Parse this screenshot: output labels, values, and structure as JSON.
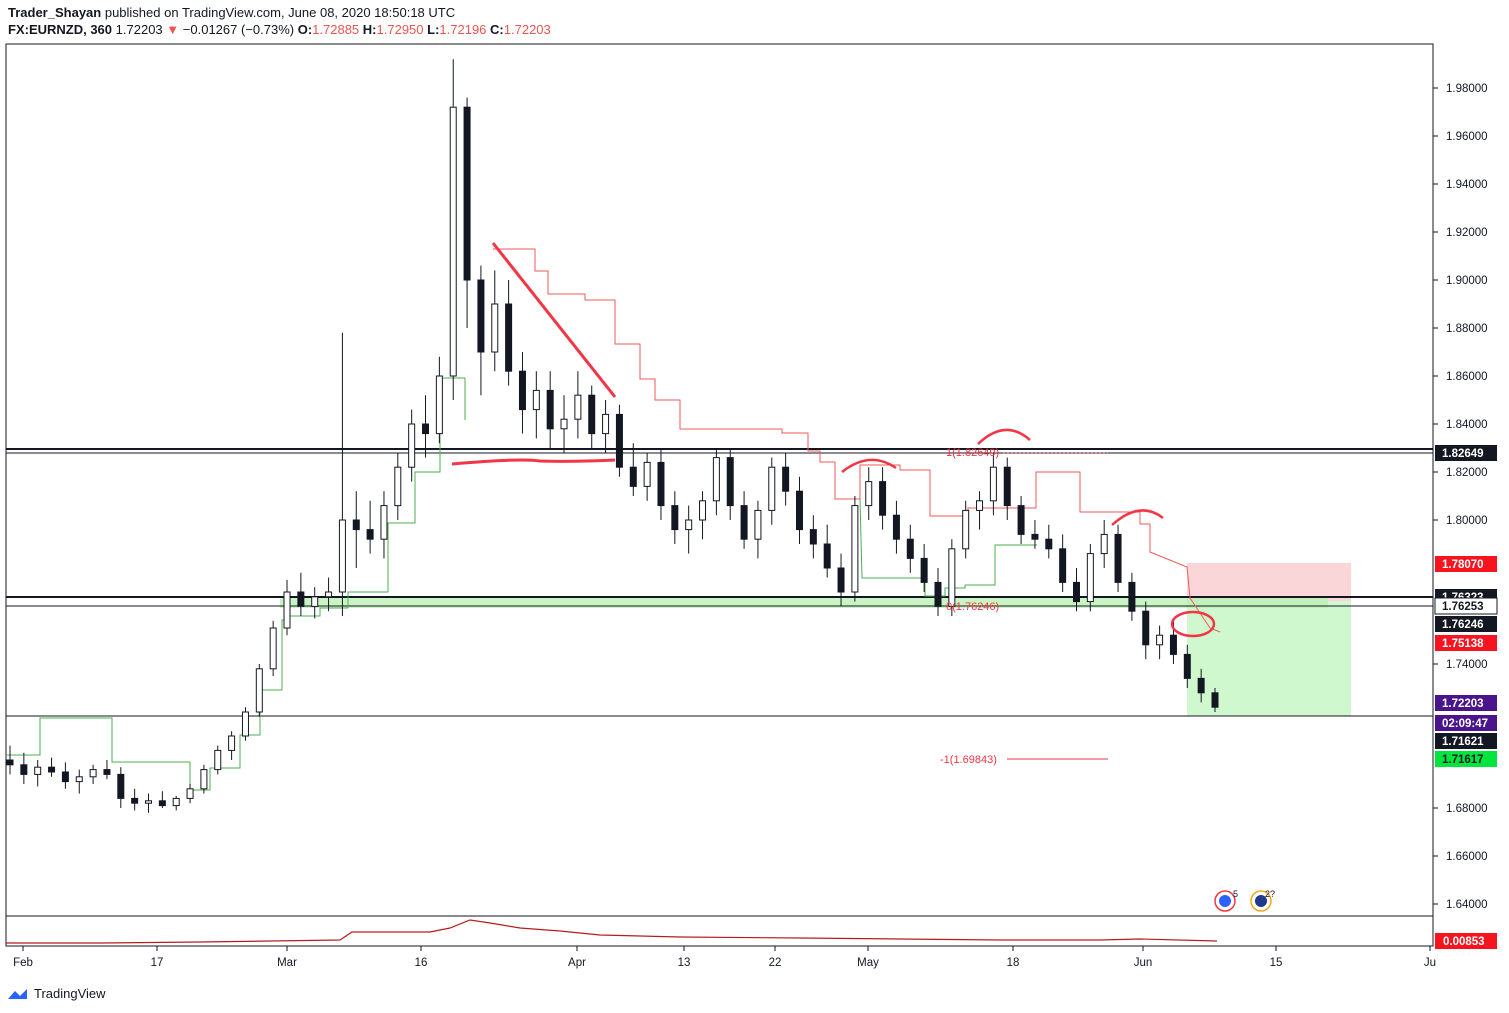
{
  "header": {
    "author": "Trader_Shayan",
    "published": "published on TradingView.com, June 08, 2020 18:50:18 UTC",
    "symbol": "FX:EURNZD, 360",
    "last": "1.72203",
    "change": "−0.01267 (−0.73%)",
    "o_label": "O:",
    "o": "1.72885",
    "h_label": "H:",
    "h": "1.72950",
    "l_label": "L:",
    "l": "1.72196",
    "c_label": "C:",
    "c": "1.72203"
  },
  "footer": {
    "brand": "TradingView"
  },
  "chart_data": {
    "type": "candlestick",
    "symbol": "FX:EURNZD",
    "interval": "360",
    "ylim": [
      1.618,
      1.998
    ],
    "y_ticks": [
      "1.98000",
      "1.96000",
      "1.94000",
      "1.92000",
      "1.90000",
      "1.88000",
      "1.86000",
      "1.84000",
      "1.82000",
      "1.80000",
      "1.74000",
      "1.68000",
      "1.66000",
      "1.64000"
    ],
    "x_ticks": [
      "Feb",
      "17",
      "Mar",
      "16",
      "Apr",
      "13",
      "22",
      "May",
      "18",
      "Jun",
      "15",
      "Ju"
    ],
    "price_labels": [
      {
        "text": "1.82649",
        "bg": "#131722",
        "fg": "#ffffff",
        "value": 1.82649
      },
      {
        "text": "1.78070",
        "bg": "#f7141f",
        "fg": "#ffffff",
        "value": 1.7807
      },
      {
        "text": "1.76323",
        "bg": "#131722",
        "fg": "#ffffff",
        "value": 1.76323
      },
      {
        "text": "1.76253",
        "bg": "#ffffff",
        "fg": "#131722",
        "value": 1.76253
      },
      {
        "text": "1.76246",
        "bg": "#131722",
        "fg": "#ffffff",
        "value": 1.76246
      },
      {
        "text": "1.75138",
        "bg": "#f7141f",
        "fg": "#ffffff",
        "value": 1.75138
      },
      {
        "text": "1.72203",
        "bg": "#4a148c",
        "fg": "#ffffff",
        "value": 1.72203
      },
      {
        "text": "02:09:47",
        "bg": "#4a148c",
        "fg": "#ffffff",
        "value": null
      },
      {
        "text": "1.71621",
        "bg": "#131722",
        "fg": "#ffffff",
        "value": 1.71621
      },
      {
        "text": "1.71617",
        "bg": "#00e63c",
        "fg": "#131722",
        "value": 1.71617
      }
    ],
    "horizontal_levels": [
      1.8282,
      1.82649,
      1.76323,
      1.76253,
      1.71621
    ],
    "support_zone": [
      1.7577,
      1.7625
    ],
    "fib_labels": [
      {
        "text": "1(1.82649)",
        "value": 1.82649
      },
      {
        "text": "0(1.76246)",
        "value": 1.76246
      },
      {
        "text": "-1(1.69843)",
        "value": 1.69843
      }
    ],
    "position": {
      "entry": 1.76253,
      "stop": 1.7807,
      "target": 1.71617
    },
    "indicator": {
      "value_label": "0.00853",
      "bg": "#f7141f"
    },
    "event_markers": [
      {
        "count": "5"
      },
      {
        "count": "2?"
      }
    ],
    "ohlc_sample": [
      [
        1.7,
        1.706,
        1.694,
        1.698
      ],
      [
        1.698,
        1.703,
        1.69,
        1.694
      ],
      [
        1.694,
        1.7,
        1.689,
        1.697
      ],
      [
        1.697,
        1.701,
        1.693,
        1.695
      ],
      [
        1.695,
        1.699,
        1.688,
        1.691
      ],
      [
        1.691,
        1.696,
        1.686,
        1.693
      ],
      [
        1.693,
        1.698,
        1.69,
        1.696
      ],
      [
        1.696,
        1.7,
        1.692,
        1.694
      ],
      [
        1.694,
        1.697,
        1.68,
        1.684
      ],
      [
        1.684,
        1.688,
        1.679,
        1.682
      ],
      [
        1.682,
        1.686,
        1.678,
        1.683
      ],
      [
        1.683,
        1.687,
        1.68,
        1.681
      ],
      [
        1.681,
        1.685,
        1.679,
        1.684
      ],
      [
        1.684,
        1.69,
        1.682,
        1.688
      ],
      [
        1.688,
        1.698,
        1.686,
        1.696
      ],
      [
        1.696,
        1.706,
        1.694,
        1.704
      ],
      [
        1.704,
        1.712,
        1.7,
        1.71
      ],
      [
        1.71,
        1.722,
        1.708,
        1.72
      ],
      [
        1.72,
        1.74,
        1.718,
        1.738
      ],
      [
        1.738,
        1.758,
        1.735,
        1.755
      ],
      [
        1.755,
        1.775,
        1.752,
        1.77
      ],
      [
        1.77,
        1.778,
        1.76,
        1.764
      ],
      [
        1.764,
        1.772,
        1.759,
        1.768
      ],
      [
        1.768,
        1.776,
        1.762,
        1.77
      ],
      [
        1.77,
        1.878,
        1.76,
        1.8
      ],
      [
        1.8,
        1.812,
        1.78,
        1.796
      ],
      [
        1.796,
        1.808,
        1.786,
        1.792
      ],
      [
        1.792,
        1.812,
        1.784,
        1.806
      ],
      [
        1.806,
        1.828,
        1.8,
        1.822
      ],
      [
        1.822,
        1.846,
        1.816,
        1.84
      ],
      [
        1.84,
        1.852,
        1.826,
        1.836
      ],
      [
        1.836,
        1.868,
        1.832,
        1.86
      ],
      [
        1.86,
        1.992,
        1.85,
        1.972
      ],
      [
        1.972,
        1.976,
        1.88,
        1.9
      ],
      [
        1.9,
        1.906,
        1.852,
        1.87
      ],
      [
        1.87,
        1.904,
        1.862,
        1.89
      ],
      [
        1.89,
        1.9,
        1.856,
        1.862
      ],
      [
        1.862,
        1.87,
        1.836,
        1.846
      ],
      [
        1.846,
        1.862,
        1.834,
        1.854
      ],
      [
        1.854,
        1.862,
        1.83,
        1.838
      ],
      [
        1.838,
        1.852,
        1.828,
        1.842
      ],
      [
        1.842,
        1.862,
        1.834,
        1.852
      ],
      [
        1.852,
        1.856,
        1.83,
        1.836
      ],
      [
        1.836,
        1.85,
        1.828,
        1.844
      ],
      [
        1.844,
        1.848,
        1.818,
        1.822
      ],
      [
        1.822,
        1.832,
        1.81,
        1.814
      ],
      [
        1.814,
        1.828,
        1.808,
        1.824
      ],
      [
        1.824,
        1.83,
        1.8,
        1.806
      ],
      [
        1.806,
        1.812,
        1.79,
        1.796
      ],
      [
        1.796,
        1.806,
        1.786,
        1.8
      ],
      [
        1.8,
        1.812,
        1.792,
        1.808
      ],
      [
        1.808,
        1.83,
        1.802,
        1.826
      ],
      [
        1.826,
        1.83,
        1.8,
        1.806
      ],
      [
        1.806,
        1.812,
        1.788,
        1.792
      ],
      [
        1.792,
        1.808,
        1.784,
        1.804
      ],
      [
        1.804,
        1.826,
        1.798,
        1.822
      ],
      [
        1.822,
        1.828,
        1.806,
        1.812
      ],
      [
        1.812,
        1.818,
        1.79,
        1.796
      ],
      [
        1.796,
        1.802,
        1.784,
        1.79
      ],
      [
        1.79,
        1.798,
        1.776,
        1.78
      ],
      [
        1.78,
        1.786,
        1.764,
        1.77
      ],
      [
        1.77,
        1.81,
        1.766,
        1.806
      ],
      [
        1.806,
        1.822,
        1.8,
        1.816
      ],
      [
        1.816,
        1.822,
        1.796,
        1.802
      ],
      [
        1.802,
        1.808,
        1.786,
        1.792
      ],
      [
        1.792,
        1.798,
        1.778,
        1.784
      ],
      [
        1.784,
        1.79,
        1.77,
        1.774
      ],
      [
        1.774,
        1.78,
        1.76,
        1.764
      ],
      [
        1.764,
        1.792,
        1.76,
        1.788
      ],
      [
        1.788,
        1.808,
        1.784,
        1.804
      ],
      [
        1.804,
        1.812,
        1.796,
        1.808
      ],
      [
        1.808,
        1.828,
        1.802,
        1.822
      ],
      [
        1.822,
        1.826,
        1.8,
        1.806
      ],
      [
        1.806,
        1.81,
        1.79,
        1.794
      ],
      [
        1.794,
        1.8,
        1.788,
        1.792
      ],
      [
        1.792,
        1.798,
        1.784,
        1.788
      ],
      [
        1.788,
        1.794,
        1.77,
        1.774
      ],
      [
        1.774,
        1.78,
        1.762,
        1.766
      ],
      [
        1.766,
        1.79,
        1.762,
        1.786
      ],
      [
        1.786,
        1.8,
        1.78,
        1.794
      ],
      [
        1.794,
        1.798,
        1.77,
        1.774
      ],
      [
        1.774,
        1.778,
        1.758,
        1.762
      ],
      [
        1.762,
        1.766,
        1.742,
        1.748
      ],
      [
        1.748,
        1.756,
        1.742,
        1.752
      ],
      [
        1.752,
        1.758,
        1.74,
        1.744
      ],
      [
        1.744,
        1.748,
        1.73,
        1.734
      ],
      [
        1.734,
        1.738,
        1.724,
        1.728
      ],
      [
        1.728,
        1.73,
        1.72,
        1.722
      ]
    ]
  }
}
